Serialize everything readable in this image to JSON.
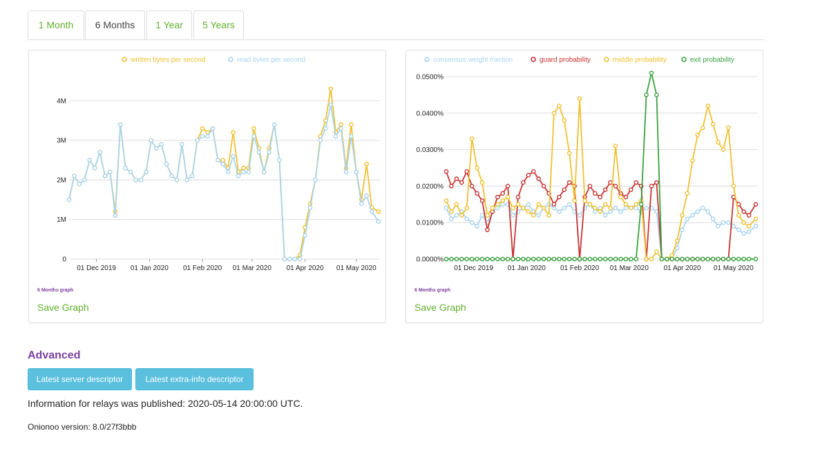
{
  "tabs": [
    {
      "label": "1 Month",
      "active": false
    },
    {
      "label": "6 Months",
      "active": true
    },
    {
      "label": "1 Year",
      "active": false
    },
    {
      "label": "5 Years",
      "active": false
    }
  ],
  "graphs": {
    "bandwidth": {
      "caption": "6 Months graph",
      "save_label": "Save Graph"
    },
    "weights": {
      "caption": "6 Months graph",
      "save_label": "Save Graph"
    }
  },
  "advanced": {
    "heading": "Advanced",
    "buttons": [
      "Latest server descriptor",
      "Latest extra-info descriptor"
    ]
  },
  "footer": {
    "published": "Information for relays was published: 2020-05-14 20:00:00 UTC.",
    "version": "Onionoo version: 8.0/27f3bbb"
  },
  "colors": {
    "tab_link": "#5fb02c",
    "written": "#f0c030",
    "read": "#a8d4ee",
    "guard": "#c83232",
    "middle": "#f0c030",
    "exit": "#3aa040",
    "heading": "#7a3fa0",
    "button": "#5bc0de"
  },
  "chart_data": [
    {
      "type": "line",
      "title": "",
      "xlabel": "",
      "ylabel": "",
      "legend_position": "top",
      "x_ticks": [
        "01 Dec 2019",
        "01 Jan 2020",
        "01 Feb 2020",
        "01 Mar 2020",
        "01 Apr 2020",
        "01 May 2020"
      ],
      "y_ticks": [
        "0",
        "1M",
        "2M",
        "3M",
        "4M"
      ],
      "ylim": [
        0,
        4400000
      ],
      "x": [
        "2019-11-15",
        "2019-11-18",
        "2019-11-21",
        "2019-11-24",
        "2019-11-27",
        "2019-11-30",
        "2019-12-03",
        "2019-12-06",
        "2019-12-09",
        "2019-12-12",
        "2019-12-15",
        "2019-12-18",
        "2019-12-21",
        "2019-12-24",
        "2019-12-27",
        "2019-12-30",
        "2020-01-02",
        "2020-01-05",
        "2020-01-08",
        "2020-01-11",
        "2020-01-14",
        "2020-01-17",
        "2020-01-20",
        "2020-01-23",
        "2020-01-26",
        "2020-01-29",
        "2020-02-01",
        "2020-02-04",
        "2020-02-07",
        "2020-02-10",
        "2020-02-13",
        "2020-02-16",
        "2020-02-19",
        "2020-02-22",
        "2020-02-25",
        "2020-02-28",
        "2020-03-02",
        "2020-03-05",
        "2020-03-08",
        "2020-03-11",
        "2020-03-14",
        "2020-03-17",
        "2020-03-20",
        "2020-03-23",
        "2020-03-26",
        "2020-03-29",
        "2020-04-01",
        "2020-04-04",
        "2020-04-07",
        "2020-04-10",
        "2020-04-13",
        "2020-04-16",
        "2020-04-19",
        "2020-04-22",
        "2020-04-25",
        "2020-04-28",
        "2020-05-01",
        "2020-05-04",
        "2020-05-07",
        "2020-05-10",
        "2020-05-14"
      ],
      "series": [
        {
          "name": "written bytes per second",
          "values": [
            1500000,
            2100000,
            1900000,
            2000000,
            2500000,
            2300000,
            2700000,
            2100000,
            2200000,
            1200000,
            3400000,
            2300000,
            2200000,
            2000000,
            2000000,
            2200000,
            3000000,
            2800000,
            2900000,
            2400000,
            2100000,
            2000000,
            2900000,
            2000000,
            2100000,
            3000000,
            3300000,
            3200000,
            3300000,
            2500000,
            2500000,
            2300000,
            3200000,
            2200000,
            2300000,
            2300000,
            3300000,
            2800000,
            2200000,
            2800000,
            3400000,
            2500000,
            0,
            0,
            0,
            100000,
            800000,
            1400000,
            2000000,
            3100000,
            3500000,
            4300000,
            3200000,
            3400000,
            2300000,
            3400000,
            2200000,
            1500000,
            2400000,
            1300000,
            1200000
          ]
        },
        {
          "name": "read bytes per second",
          "values": [
            1500000,
            2100000,
            1900000,
            2000000,
            2500000,
            2300000,
            2700000,
            2100000,
            2200000,
            1100000,
            3400000,
            2300000,
            2200000,
            2000000,
            2000000,
            2200000,
            3000000,
            2800000,
            2900000,
            2400000,
            2100000,
            2000000,
            2900000,
            2000000,
            2100000,
            3000000,
            3100000,
            3100000,
            3300000,
            2500000,
            2400000,
            2200000,
            2600000,
            2100000,
            2200000,
            2200000,
            3100000,
            2700000,
            2200000,
            2700000,
            3400000,
            2500000,
            0,
            0,
            0,
            0,
            600000,
            1300000,
            2000000,
            3000000,
            3300000,
            3900000,
            3100000,
            3300000,
            2200000,
            3100000,
            2200000,
            1400000,
            1600000,
            1200000,
            950000
          ]
        }
      ]
    },
    {
      "type": "line",
      "title": "",
      "xlabel": "",
      "ylabel": "",
      "legend_position": "top",
      "x_ticks": [
        "01 Dec 2019",
        "01 Jan 2020",
        "01 Feb 2020",
        "01 Mar 2020",
        "01 Apr 2020",
        "01 May 2020"
      ],
      "y_ticks": [
        "0.0000%",
        "0.0100%",
        "0.0200%",
        "0.0300%",
        "0.0400%",
        "0.0500%"
      ],
      "ylim": [
        0,
        0.05
      ],
      "x": [
        "2019-11-15",
        "2019-11-18",
        "2019-11-21",
        "2019-11-24",
        "2019-11-27",
        "2019-11-30",
        "2019-12-03",
        "2019-12-06",
        "2019-12-09",
        "2019-12-12",
        "2019-12-15",
        "2019-12-18",
        "2019-12-21",
        "2019-12-24",
        "2019-12-27",
        "2019-12-30",
        "2020-01-02",
        "2020-01-05",
        "2020-01-08",
        "2020-01-11",
        "2020-01-14",
        "2020-01-17",
        "2020-01-20",
        "2020-01-23",
        "2020-01-26",
        "2020-01-29",
        "2020-02-01",
        "2020-02-04",
        "2020-02-07",
        "2020-02-10",
        "2020-02-13",
        "2020-02-16",
        "2020-02-19",
        "2020-02-22",
        "2020-02-25",
        "2020-02-28",
        "2020-03-02",
        "2020-03-05",
        "2020-03-08",
        "2020-03-11",
        "2020-03-14",
        "2020-03-17",
        "2020-03-20",
        "2020-03-23",
        "2020-03-26",
        "2020-03-29",
        "2020-04-01",
        "2020-04-04",
        "2020-04-07",
        "2020-04-10",
        "2020-04-13",
        "2020-04-16",
        "2020-04-19",
        "2020-04-22",
        "2020-04-25",
        "2020-04-28",
        "2020-05-01",
        "2020-05-04",
        "2020-05-07",
        "2020-05-10",
        "2020-05-14"
      ],
      "series": [
        {
          "name": "consensus weight fraction",
          "values": [
            0.014,
            0.011,
            0.012,
            0.013,
            0.011,
            0.01,
            0.009,
            0.012,
            0.01,
            0.013,
            0.014,
            0.015,
            0.015,
            0.012,
            0.013,
            0.014,
            0.015,
            0.013,
            0.012,
            0.014,
            0.015,
            0.014,
            0.013,
            0.014,
            0.015,
            0.013,
            0.012,
            0.014,
            0.015,
            0.013,
            0.014,
            0.012,
            0.013,
            0.014,
            0.013,
            0.014,
            0.014,
            0.014,
            0.013,
            0.014,
            0.014,
            0.013,
            0.0,
            0.0,
            0.0,
            0.003,
            0.008,
            0.011,
            0.012,
            0.013,
            0.014,
            0.013,
            0.011,
            0.009,
            0.01,
            0.01,
            0.009,
            0.008,
            0.007,
            0.0075,
            0.009
          ]
        },
        {
          "name": "guard probability",
          "values": [
            0.024,
            0.02,
            0.022,
            0.021,
            0.024,
            0.02,
            0.018,
            0.016,
            0.008,
            0.013,
            0.017,
            0.018,
            0.02,
            0.0,
            0.017,
            0.021,
            0.023,
            0.024,
            0.022,
            0.02,
            0.018,
            0.015,
            0.017,
            0.019,
            0.021,
            0.02,
            0.0,
            0.017,
            0.02,
            0.018,
            0.017,
            0.019,
            0.021,
            0.02,
            0.018,
            0.017,
            0.019,
            0.021,
            0.02,
            0.0,
            0.02,
            0.021,
            0.0,
            0.0,
            0.0,
            0.0,
            0.0,
            0.0,
            0.0,
            0.0,
            0.0,
            0.0,
            0.0,
            0.0,
            0.0,
            0.0,
            0.017,
            0.015,
            0.013,
            0.012,
            0.015
          ]
        },
        {
          "name": "middle probability",
          "values": [
            0.016,
            0.013,
            0.015,
            0.012,
            0.014,
            0.033,
            0.025,
            0.021,
            0.012,
            0.014,
            0.015,
            0.016,
            0.017,
            0.014,
            0.015,
            0.014,
            0.013,
            0.012,
            0.015,
            0.014,
            0.012,
            0.04,
            0.042,
            0.038,
            0.029,
            0.016,
            0.044,
            0.016,
            0.015,
            0.014,
            0.013,
            0.015,
            0.014,
            0.031,
            0.017,
            0.015,
            0.014,
            0.015,
            0.016,
            0.0,
            0.0,
            0.002,
            0.0,
            0.0,
            0.001,
            0.005,
            0.012,
            0.018,
            0.027,
            0.034,
            0.036,
            0.042,
            0.037,
            0.032,
            0.03,
            0.036,
            0.02,
            0.012,
            0.01,
            0.009,
            0.011
          ]
        },
        {
          "name": "exit probability",
          "values": [
            0,
            0,
            0,
            0,
            0,
            0,
            0,
            0,
            0,
            0,
            0,
            0,
            0,
            0,
            0,
            0,
            0,
            0,
            0,
            0,
            0,
            0,
            0,
            0,
            0,
            0,
            0,
            0,
            0,
            0,
            0,
            0,
            0,
            0,
            0,
            0,
            0,
            0,
            0.015,
            0.045,
            0.051,
            0.045,
            0,
            0,
            0,
            0,
            0,
            0,
            0,
            0,
            0,
            0,
            0,
            0,
            0,
            0,
            0,
            0,
            0,
            0,
            0
          ]
        }
      ]
    }
  ]
}
